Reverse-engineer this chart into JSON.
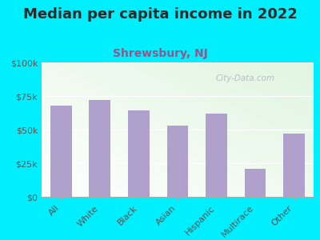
{
  "title": "Median per capita income in 2022",
  "subtitle": "Shrewsbury, NJ",
  "categories": [
    "All",
    "White",
    "Black",
    "Asian",
    "Hispanic",
    "Multirace",
    "Other"
  ],
  "values": [
    68000,
    72000,
    64000,
    53000,
    62000,
    21000,
    47000
  ],
  "bar_color": "#b0a0cc",
  "background_outer": "#00efff",
  "title_color": "#2a2a2a",
  "subtitle_color": "#8b5a8b",
  "axis_label_color": "#555555",
  "ylim": [
    0,
    100000
  ],
  "yticks": [
    0,
    25000,
    50000,
    75000,
    100000
  ],
  "ytick_labels": [
    "$0",
    "$25k",
    "$50k",
    "$75k",
    "$100k"
  ],
  "watermark": "City-Data.com",
  "title_fontsize": 13,
  "subtitle_fontsize": 10,
  "tick_fontsize": 8
}
